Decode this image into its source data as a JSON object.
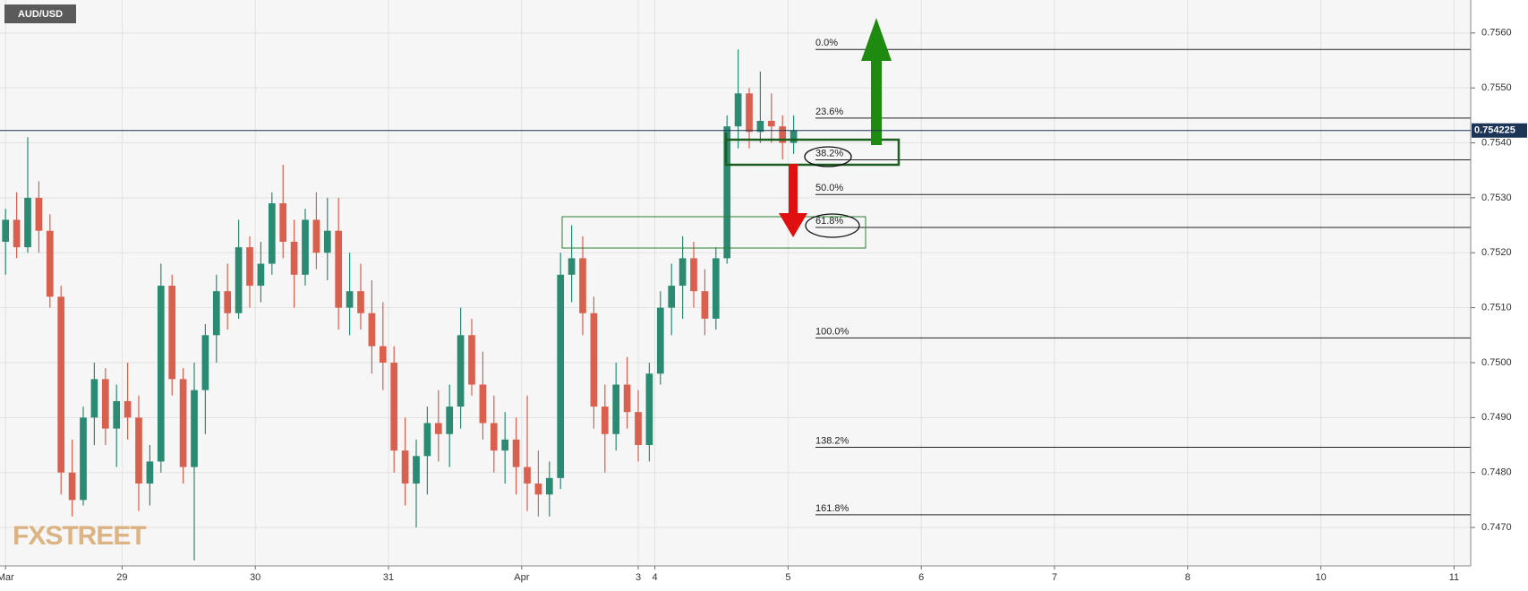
{
  "chart_data": {
    "type": "candlestick",
    "title": "AUD/USD",
    "watermark": "FXSTREET",
    "up_color": "#2b8a72",
    "down_color": "#d9604f",
    "grid": true,
    "xlim": [
      0,
      265
    ],
    "xticks": [
      {
        "value": 1,
        "label": "Mar"
      },
      {
        "value": 22,
        "label": "29"
      },
      {
        "value": 46,
        "label": "30"
      },
      {
        "value": 70,
        "label": "31"
      },
      {
        "value": 94,
        "label": "Apr"
      },
      {
        "value": 115,
        "label": "3"
      },
      {
        "value": 118,
        "label": "4"
      },
      {
        "value": 142,
        "label": "5"
      },
      {
        "value": 166,
        "label": "6"
      },
      {
        "value": 190,
        "label": "7"
      },
      {
        "value": 214,
        "label": "8"
      },
      {
        "value": 238,
        "label": "10"
      },
      {
        "value": 262,
        "label": "11"
      }
    ],
    "ylim": [
      0.7463,
      0.7566
    ],
    "yticks": [
      {
        "value": 0.747,
        "label": "0.7470"
      },
      {
        "value": 0.748,
        "label": "0.7480"
      },
      {
        "value": 0.749,
        "label": "0.7490"
      },
      {
        "value": 0.75,
        "label": "0.7500"
      },
      {
        "value": 0.751,
        "label": "0.7510"
      },
      {
        "value": 0.752,
        "label": "0.7520"
      },
      {
        "value": 0.753,
        "label": "0.7530"
      },
      {
        "value": 0.754,
        "label": "0.7540"
      },
      {
        "value": 0.755,
        "label": "0.7550"
      },
      {
        "value": 0.756,
        "label": "0.7560"
      }
    ],
    "last_price": 0.754225,
    "fib_levels": [
      {
        "label": "0.0%",
        "value": 0.7557
      },
      {
        "label": "23.6%",
        "value": 0.75445
      },
      {
        "label": "38.2%",
        "value": 0.75369
      },
      {
        "label": "50.0%",
        "value": 0.75306
      },
      {
        "label": "61.8%",
        "value": 0.75246
      },
      {
        "label": "100.0%",
        "value": 0.75045
      },
      {
        "label": "138.2%",
        "value": 0.74846
      },
      {
        "label": "161.8%",
        "value": 0.74723
      }
    ],
    "x": [
      1,
      3,
      5,
      7,
      9,
      11,
      13,
      15,
      17,
      19,
      21,
      23,
      25,
      27,
      29,
      31,
      33,
      35,
      37,
      39,
      41,
      43,
      45,
      47,
      49,
      51,
      53,
      55,
      57,
      59,
      61,
      63,
      65,
      67,
      69,
      71,
      73,
      75,
      77,
      79,
      81,
      83,
      85,
      87,
      89,
      91,
      93,
      95,
      97,
      99,
      101,
      103,
      105,
      107,
      109,
      111,
      113,
      115,
      117,
      119,
      121,
      123,
      125,
      127,
      129,
      131,
      133,
      135,
      137,
      139,
      141,
      143
    ],
    "open": [
      0.7522,
      0.7526,
      0.7521,
      0.753,
      0.7524,
      0.7512,
      0.748,
      0.7475,
      0.749,
      0.7497,
      0.7488,
      0.7493,
      0.749,
      0.7478,
      0.7482,
      0.7514,
      0.7497,
      0.7481,
      0.7495,
      0.7505,
      0.7513,
      0.7509,
      0.7521,
      0.7514,
      0.7518,
      0.7529,
      0.7522,
      0.7516,
      0.7526,
      0.752,
      0.7524,
      0.751,
      0.7513,
      0.7509,
      0.7503,
      0.75,
      0.7484,
      0.7478,
      0.7483,
      0.7489,
      0.7487,
      0.7492,
      0.7505,
      0.7496,
      0.7489,
      0.7484,
      0.7486,
      0.7481,
      0.7478,
      0.7476,
      0.7479,
      0.7516,
      0.7519,
      0.7509,
      0.7492,
      0.7487,
      0.7496,
      0.7491,
      0.7485,
      0.7498,
      0.751,
      0.7514,
      0.7519,
      0.7513,
      0.7508,
      0.7519,
      0.7543,
      0.7549,
      0.7542,
      0.7544,
      0.7543,
      0.754
    ],
    "high": [
      0.7528,
      0.7531,
      0.7541,
      0.7533,
      0.7527,
      0.7514,
      0.7486,
      0.7492,
      0.75,
      0.7499,
      0.7496,
      0.75,
      0.7494,
      0.7485,
      0.7518,
      0.7516,
      0.7499,
      0.75,
      0.7507,
      0.7516,
      0.7518,
      0.7526,
      0.7523,
      0.7522,
      0.7531,
      0.7536,
      0.7526,
      0.7528,
      0.7531,
      0.753,
      0.753,
      0.752,
      0.7518,
      0.7515,
      0.7511,
      0.7503,
      0.749,
      0.7486,
      0.7492,
      0.7495,
      0.7496,
      0.751,
      0.7508,
      0.7502,
      0.7494,
      0.7491,
      0.749,
      0.7494,
      0.7484,
      0.7482,
      0.752,
      0.7525,
      0.7523,
      0.7512,
      0.7496,
      0.75,
      0.7501,
      0.7495,
      0.75,
      0.7513,
      0.7518,
      0.7523,
      0.7522,
      0.7517,
      0.7521,
      0.7545,
      0.7557,
      0.755,
      0.7553,
      0.7549,
      0.7545,
      0.7545
    ],
    "low": [
      0.7516,
      0.7519,
      0.752,
      0.752,
      0.751,
      0.7476,
      0.7472,
      0.7474,
      0.7485,
      0.7485,
      0.7481,
      0.7486,
      0.7473,
      0.7474,
      0.748,
      0.7494,
      0.7478,
      0.7464,
      0.7487,
      0.75,
      0.7506,
      0.7508,
      0.751,
      0.7511,
      0.7516,
      0.7519,
      0.751,
      0.7514,
      0.7517,
      0.7515,
      0.7506,
      0.7505,
      0.7506,
      0.7498,
      0.7495,
      0.748,
      0.7474,
      0.747,
      0.7476,
      0.7482,
      0.7481,
      0.7488,
      0.7494,
      0.7486,
      0.748,
      0.7478,
      0.7476,
      0.7473,
      0.7472,
      0.7472,
      0.7477,
      0.7511,
      0.7505,
      0.7488,
      0.748,
      0.7484,
      0.7488,
      0.7482,
      0.7482,
      0.7496,
      0.7505,
      0.7508,
      0.751,
      0.7505,
      0.7506,
      0.7518,
      0.7539,
      0.7539,
      0.754,
      0.754,
      0.7537,
      0.7538
    ],
    "close": [
      0.7526,
      0.7521,
      0.753,
      0.7524,
      0.7512,
      0.748,
      0.7475,
      0.749,
      0.7497,
      0.7488,
      0.7493,
      0.749,
      0.7478,
      0.7482,
      0.7514,
      0.7497,
      0.7481,
      0.7495,
      0.7505,
      0.7513,
      0.7509,
      0.7521,
      0.7514,
      0.7518,
      0.7529,
      0.7522,
      0.7516,
      0.7526,
      0.752,
      0.7524,
      0.751,
      0.7513,
      0.7509,
      0.7503,
      0.75,
      0.7484,
      0.7478,
      0.7483,
      0.7489,
      0.7487,
      0.7492,
      0.7505,
      0.7496,
      0.7489,
      0.7484,
      0.7486,
      0.7481,
      0.7478,
      0.7476,
      0.7479,
      0.7516,
      0.7519,
      0.7509,
      0.7492,
      0.7487,
      0.7496,
      0.7491,
      0.7485,
      0.7498,
      0.751,
      0.7514,
      0.7519,
      0.7513,
      0.7508,
      0.7519,
      0.7543,
      0.7549,
      0.7542,
      0.7544,
      0.7543,
      0.754,
      0.754225
    ]
  }
}
